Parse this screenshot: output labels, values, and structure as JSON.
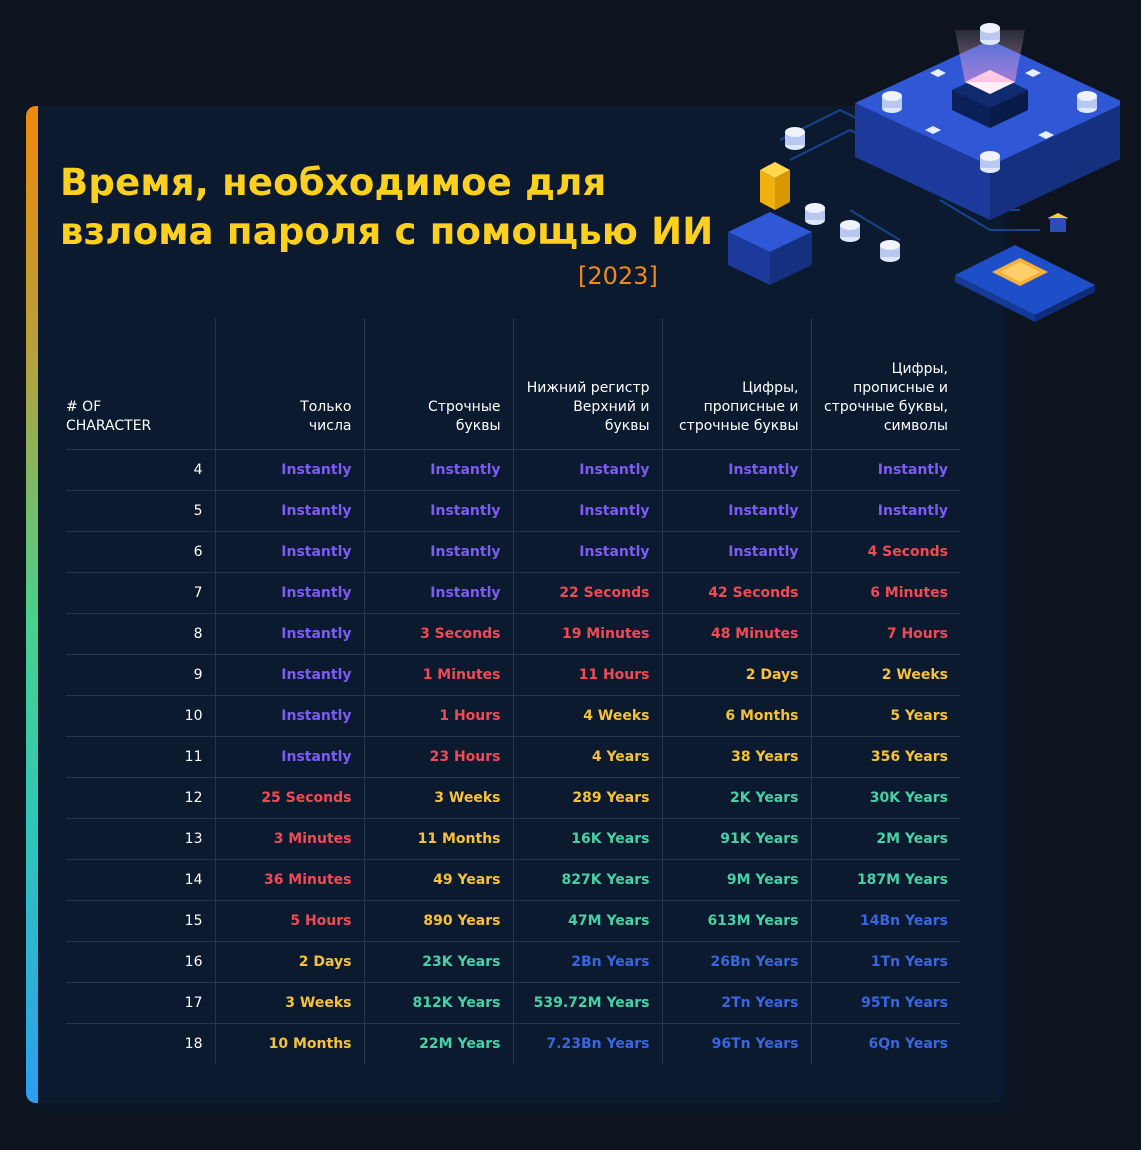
{
  "title_lines": [
    "Время, необходимое для",
    "взлома пароля с помощью ИИ"
  ],
  "year": "[2023]",
  "colors": {
    "instant": "#7d5cf5",
    "short": "#f14a55",
    "medium": "#f7c23a",
    "long": "#47d2a6",
    "very_long": "#3a66e0",
    "title": "#fdd020",
    "year": "#f28a1a"
  },
  "table": {
    "headers": [
      [
        "# OF",
        "CHARACTER"
      ],
      [
        "Только",
        "числа"
      ],
      [
        "Строчные",
        "буквы"
      ],
      [
        "Нижний регистр",
        "Верхний и буквы"
      ],
      [
        "Цифры,",
        "прописные и",
        "строчные буквы"
      ],
      [
        "Цифры,",
        "прописные и",
        "строчные буквы,",
        "символы"
      ]
    ],
    "rows": [
      {
        "n": "4",
        "cells": [
          [
            "Instantly",
            "p"
          ],
          [
            "Instantly",
            "p"
          ],
          [
            "Instantly",
            "p"
          ],
          [
            "Instantly",
            "p"
          ],
          [
            "Instantly",
            "p"
          ]
        ]
      },
      {
        "n": "5",
        "cells": [
          [
            "Instantly",
            "p"
          ],
          [
            "Instantly",
            "p"
          ],
          [
            "Instantly",
            "p"
          ],
          [
            "Instantly",
            "p"
          ],
          [
            "Instantly",
            "p"
          ]
        ]
      },
      {
        "n": "6",
        "cells": [
          [
            "Instantly",
            "p"
          ],
          [
            "Instantly",
            "p"
          ],
          [
            "Instantly",
            "p"
          ],
          [
            "Instantly",
            "p"
          ],
          [
            "4 Seconds",
            "r"
          ]
        ]
      },
      {
        "n": "7",
        "cells": [
          [
            "Instantly",
            "p"
          ],
          [
            "Instantly",
            "p"
          ],
          [
            "22 Seconds",
            "r"
          ],
          [
            "42 Seconds",
            "r"
          ],
          [
            "6 Minutes",
            "r"
          ]
        ]
      },
      {
        "n": "8",
        "cells": [
          [
            "Instantly",
            "p"
          ],
          [
            "3 Seconds",
            "r"
          ],
          [
            "19 Minutes",
            "r"
          ],
          [
            "48 Minutes",
            "r"
          ],
          [
            "7 Hours",
            "r"
          ]
        ]
      },
      {
        "n": "9",
        "cells": [
          [
            "Instantly",
            "p"
          ],
          [
            "1 Minutes",
            "r"
          ],
          [
            "11 Hours",
            "r"
          ],
          [
            "2 Days",
            "y"
          ],
          [
            "2 Weeks",
            "y"
          ]
        ]
      },
      {
        "n": "10",
        "cells": [
          [
            "Instantly",
            "p"
          ],
          [
            "1 Hours",
            "r"
          ],
          [
            "4 Weeks",
            "y"
          ],
          [
            "6 Months",
            "y"
          ],
          [
            "5 Years",
            "y"
          ]
        ]
      },
      {
        "n": "11",
        "cells": [
          [
            "Instantly",
            "p"
          ],
          [
            "23 Hours",
            "r"
          ],
          [
            "4 Years",
            "y"
          ],
          [
            "38 Years",
            "y"
          ],
          [
            "356 Years",
            "y"
          ]
        ]
      },
      {
        "n": "12",
        "cells": [
          [
            "25 Seconds",
            "r"
          ],
          [
            "3 Weeks",
            "y"
          ],
          [
            "289 Years",
            "y"
          ],
          [
            "2K Years",
            "t"
          ],
          [
            "30K Years",
            "t"
          ]
        ]
      },
      {
        "n": "13",
        "cells": [
          [
            "3 Minutes",
            "r"
          ],
          [
            "11 Months",
            "y"
          ],
          [
            "16K Years",
            "t"
          ],
          [
            "91K Years",
            "t"
          ],
          [
            "2M Years",
            "t"
          ]
        ]
      },
      {
        "n": "14",
        "cells": [
          [
            "36 Minutes",
            "r"
          ],
          [
            "49 Years",
            "y"
          ],
          [
            "827K Years",
            "t"
          ],
          [
            "9M Years",
            "t"
          ],
          [
            "187M Years",
            "t"
          ]
        ]
      },
      {
        "n": "15",
        "cells": [
          [
            "5 Hours",
            "r"
          ],
          [
            "890 Years",
            "y"
          ],
          [
            "47M Years",
            "t"
          ],
          [
            "613M Years",
            "t"
          ],
          [
            "14Bn Years",
            "b"
          ]
        ]
      },
      {
        "n": "16",
        "cells": [
          [
            "2 Days",
            "y"
          ],
          [
            "23K Years",
            "t"
          ],
          [
            "2Bn Years",
            "b"
          ],
          [
            "26Bn Years",
            "b"
          ],
          [
            "1Tn Years",
            "b"
          ]
        ]
      },
      {
        "n": "17",
        "cells": [
          [
            "3 Weeks",
            "y"
          ],
          [
            "812K Years",
            "t"
          ],
          [
            "539.72M Years",
            "t"
          ],
          [
            "2Tn Years",
            "b"
          ],
          [
            "95Tn Years",
            "b"
          ]
        ]
      },
      {
        "n": "18",
        "cells": [
          [
            "10 Months",
            "y"
          ],
          [
            "22M Years",
            "t"
          ],
          [
            "7.23Bn Years",
            "b"
          ],
          [
            "96Tn Years",
            "b"
          ],
          [
            "6Qn Years",
            "b"
          ]
        ]
      }
    ]
  }
}
